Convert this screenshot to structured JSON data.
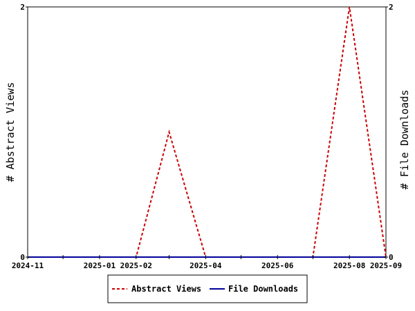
{
  "chart_data": {
    "type": "line",
    "x_axis_labels": [
      "2024-11",
      "2025-01",
      "2025-02",
      "2025-04",
      "2025-06",
      "2025-08",
      "2025-09"
    ],
    "x_axis_label_dates": [
      "2024-11-01",
      "2025-01-01",
      "2025-02-01",
      "2025-04-01",
      "2025-06-01",
      "2025-08-01",
      "2025-09-01"
    ],
    "xlim": [
      "2024-11-01",
      "2025-09-01"
    ],
    "ylim_left": [
      0,
      2
    ],
    "ylim_right": [
      0,
      2
    ],
    "y_tick_labels_left": [
      "0",
      "2"
    ],
    "y_tick_labels_right": [
      "0",
      "2"
    ],
    "ylabel_left": "# Abstract Views",
    "ylabel_right": "# File Downloads",
    "grid": false,
    "legend_position": "bottom-center",
    "series": [
      {
        "name": "Abstract Views",
        "color": "#cc0000",
        "style": "dashed",
        "axis": "left",
        "points": [
          {
            "x": "2024-11-01",
            "y": 0
          },
          {
            "x": "2025-02-01",
            "y": 0
          },
          {
            "x": "2025-03-01",
            "y": 1
          },
          {
            "x": "2025-04-01",
            "y": 0
          },
          {
            "x": "2025-07-01",
            "y": 0
          },
          {
            "x": "2025-08-01",
            "y": 2
          },
          {
            "x": "2025-09-01",
            "y": 0
          }
        ]
      },
      {
        "name": "File Downloads",
        "color": "#000099",
        "style": "solid",
        "axis": "right",
        "points": [
          {
            "x": "2024-11-01",
            "y": 0
          },
          {
            "x": "2025-09-01",
            "y": 0
          }
        ]
      }
    ]
  }
}
